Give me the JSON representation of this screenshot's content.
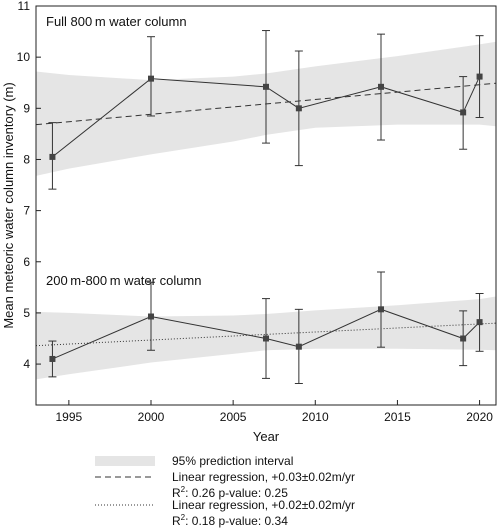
{
  "chart_data": {
    "type": "line",
    "xlabel": "Year",
    "ylabel": "Mean meteoric water column inventory (m)",
    "xlim": [
      1993,
      2021
    ],
    "ylim": [
      3.2,
      11
    ],
    "xticks": [
      1995,
      2000,
      2005,
      2010,
      2015,
      2020
    ],
    "yticks": [
      4,
      5,
      6,
      7,
      8,
      9,
      10,
      11
    ],
    "panels": [
      {
        "label": "Full 800 m water column",
        "x": [
          1994,
          2000,
          2007,
          2009,
          2014,
          2019,
          2020
        ],
        "y": [
          8.05,
          9.58,
          9.42,
          9.0,
          9.42,
          8.92,
          9.62
        ],
        "err_low": [
          7.42,
          8.85,
          8.32,
          7.88,
          8.38,
          8.2,
          8.82
        ],
        "err_high": [
          8.72,
          10.4,
          10.52,
          10.12,
          10.45,
          9.62,
          10.42
        ],
        "regression": {
          "x": [
            1993,
            2021
          ],
          "y": [
            8.68,
            9.49
          ],
          "style": "dashed"
        },
        "band": {
          "x": [
            1993,
            1995,
            2000,
            2005,
            2007,
            2010,
            2015,
            2020,
            2021
          ],
          "upper": [
            9.72,
            9.65,
            9.55,
            9.62,
            9.68,
            9.82,
            10.02,
            10.25,
            10.3
          ],
          "lower": [
            7.68,
            7.82,
            8.1,
            8.35,
            8.48,
            8.62,
            8.68,
            8.68,
            8.65
          ]
        }
      },
      {
        "label": "200 m-800 m water column",
        "x": [
          1994,
          2000,
          2007,
          2009,
          2014,
          2019,
          2020
        ],
        "y": [
          4.1,
          4.93,
          4.5,
          4.34,
          5.07,
          4.5,
          4.82
        ],
        "err_low": [
          3.75,
          4.27,
          3.72,
          3.62,
          4.33,
          3.97,
          4.25
        ],
        "err_high": [
          4.45,
          5.6,
          5.28,
          5.07,
          5.8,
          5.04,
          5.38
        ],
        "regression": {
          "x": [
            1993,
            2021
          ],
          "y": [
            4.36,
            4.8
          ],
          "style": "dotted"
        },
        "band": {
          "x": [
            1993,
            1995,
            2000,
            2005,
            2007,
            2010,
            2015,
            2020,
            2021
          ],
          "upper": [
            5.02,
            5.0,
            4.93,
            4.95,
            4.98,
            5.05,
            5.15,
            5.27,
            5.32
          ],
          "lower": [
            3.7,
            3.8,
            4.03,
            4.2,
            4.27,
            4.3,
            4.3,
            4.28,
            4.27
          ]
        }
      }
    ],
    "legend": {
      "interval": "95% prediction interval",
      "reg1": "Linear regression, +0.03±0.02m/yr",
      "reg1_stats": ": 0.26   p-value: 0.25",
      "reg2": "Linear regression, +0.02±0.02m/yr",
      "reg2_stats": ": 0.18   p-value: 0.34",
      "r2_base": "R",
      "r2_sup": "2"
    },
    "colors": {
      "band": "#e5e5e5",
      "line": "#333333",
      "marker": "#444444"
    }
  }
}
